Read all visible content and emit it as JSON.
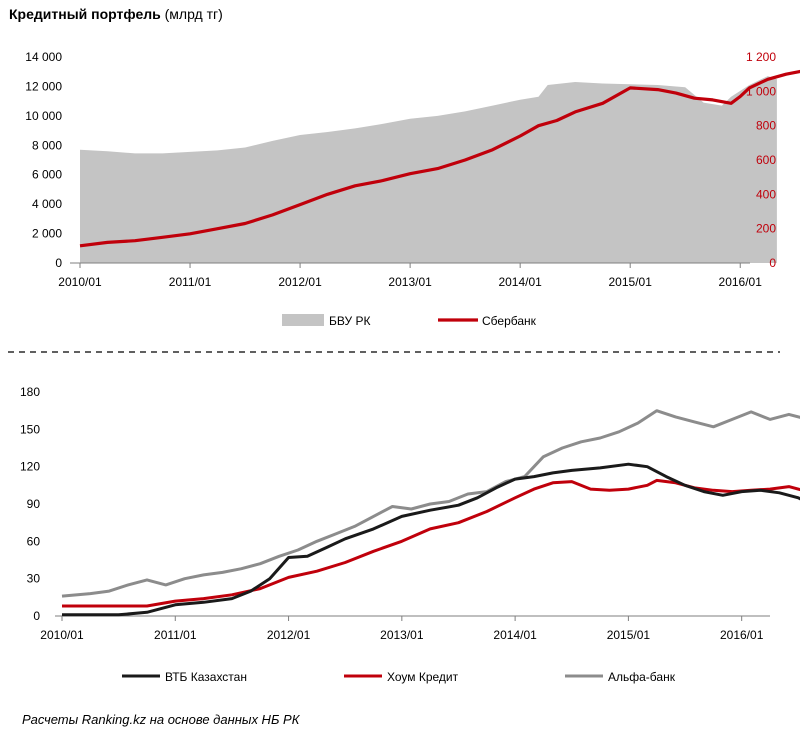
{
  "title": "Кредитный портфель",
  "title_unit": "(млрд тг)",
  "source": "Расчеты Ranking.kz на основе данных НБ РК",
  "colors": {
    "gray_area": "#c4c4c4",
    "red": "#c0000b",
    "black": "#1a1a1a",
    "gray_line": "#8c8c8c"
  },
  "chart_data": [
    {
      "type": "area",
      "x_ticks": [
        "2010/01",
        "2011/01",
        "2012/01",
        "2013/01",
        "2014/01",
        "2015/01",
        "2016/01"
      ],
      "y_left_ticks": [
        "0",
        "2 000",
        "4 000",
        "6 000",
        "8 000",
        "10 000",
        "12 000",
        "14 000"
      ],
      "y_right_ticks": [
        "0",
        "200",
        "400",
        "600",
        "800",
        "1 000",
        "1 200"
      ],
      "ylim_left": [
        0,
        14000
      ],
      "ylim_right": [
        0,
        1200
      ],
      "legend_position": "bottom",
      "series": [
        {
          "name": "БВУ РК",
          "type": "area",
          "axis": "left",
          "points": [
            [
              0,
              7700
            ],
            [
              3,
              7600
            ],
            [
              6,
              7450
            ],
            [
              9,
              7450
            ],
            [
              12,
              7550
            ],
            [
              15,
              7650
            ],
            [
              18,
              7850
            ],
            [
              21,
              8300
            ],
            [
              24,
              8700
            ],
            [
              27,
              8900
            ],
            [
              30,
              9150
            ],
            [
              33,
              9450
            ],
            [
              36,
              9800
            ],
            [
              39,
              10000
            ],
            [
              42,
              10300
            ],
            [
              45,
              10700
            ],
            [
              48,
              11100
            ],
            [
              50,
              11300
            ],
            [
              51,
              12100
            ],
            [
              54,
              12300
            ],
            [
              57,
              12200
            ],
            [
              60,
              12150
            ],
            [
              63,
              12100
            ],
            [
              66,
              11950
            ],
            [
              68,
              10900
            ],
            [
              70,
              10700
            ],
            [
              71,
              11300
            ],
            [
              73,
              12100
            ],
            [
              75,
              12700
            ],
            [
              76,
              12500
            ]
          ]
        },
        {
          "name": "Сбербанк",
          "type": "line",
          "axis": "right",
          "points": [
            [
              0,
              100
            ],
            [
              3,
              120
            ],
            [
              6,
              130
            ],
            [
              9,
              150
            ],
            [
              12,
              170
            ],
            [
              15,
              200
            ],
            [
              18,
              230
            ],
            [
              21,
              280
            ],
            [
              24,
              340
            ],
            [
              27,
              400
            ],
            [
              30,
              450
            ],
            [
              33,
              480
            ],
            [
              36,
              520
            ],
            [
              39,
              550
            ],
            [
              42,
              600
            ],
            [
              45,
              660
            ],
            [
              48,
              740
            ],
            [
              50,
              800
            ],
            [
              52,
              830
            ],
            [
              54,
              880
            ],
            [
              57,
              930
            ],
            [
              60,
              1020
            ],
            [
              63,
              1010
            ],
            [
              65,
              990
            ],
            [
              67,
              960
            ],
            [
              69,
              950
            ],
            [
              71,
              930
            ],
            [
              72,
              970
            ],
            [
              73,
              1020
            ],
            [
              75,
              1070
            ],
            [
              77,
              1100
            ],
            [
              79,
              1120
            ],
            [
              81,
              1100
            ]
          ]
        }
      ]
    },
    {
      "type": "line",
      "x_ticks": [
        "2010/01",
        "2011/01",
        "2012/01",
        "2013/01",
        "2014/01",
        "2015/01",
        "2016/01"
      ],
      "y_ticks": [
        "0",
        "30",
        "60",
        "90",
        "120",
        "150",
        "180"
      ],
      "ylim": [
        0,
        180
      ],
      "legend_position": "bottom",
      "series": [
        {
          "name": "ВТБ Казахстан",
          "points": [
            [
              0,
              1
            ],
            [
              3,
              1
            ],
            [
              6,
              1
            ],
            [
              9,
              3
            ],
            [
              12,
              9
            ],
            [
              15,
              11
            ],
            [
              18,
              14
            ],
            [
              20,
              20
            ],
            [
              22,
              30
            ],
            [
              24,
              47
            ],
            [
              26,
              48
            ],
            [
              28,
              55
            ],
            [
              30,
              62
            ],
            [
              33,
              70
            ],
            [
              36,
              80
            ],
            [
              39,
              85
            ],
            [
              42,
              89
            ],
            [
              44,
              95
            ],
            [
              46,
              103
            ],
            [
              48,
              110
            ],
            [
              50,
              112
            ],
            [
              52,
              115
            ],
            [
              54,
              117
            ],
            [
              57,
              119
            ],
            [
              60,
              122
            ],
            [
              62,
              120
            ],
            [
              64,
              112
            ],
            [
              66,
              105
            ],
            [
              68,
              100
            ],
            [
              70,
              97
            ],
            [
              72,
              100
            ],
            [
              74,
              101
            ],
            [
              76,
              99
            ],
            [
              78,
              95
            ],
            [
              79,
              91
            ]
          ]
        },
        {
          "name": "Хоум Кредит",
          "points": [
            [
              0,
              8
            ],
            [
              3,
              8
            ],
            [
              6,
              8
            ],
            [
              9,
              8
            ],
            [
              12,
              12
            ],
            [
              15,
              14
            ],
            [
              18,
              17
            ],
            [
              21,
              22
            ],
            [
              24,
              31
            ],
            [
              27,
              36
            ],
            [
              30,
              43
            ],
            [
              33,
              52
            ],
            [
              36,
              60
            ],
            [
              39,
              70
            ],
            [
              42,
              75
            ],
            [
              45,
              84
            ],
            [
              48,
              95
            ],
            [
              50,
              102
            ],
            [
              52,
              107
            ],
            [
              54,
              108
            ],
            [
              56,
              102
            ],
            [
              58,
              101
            ],
            [
              60,
              102
            ],
            [
              62,
              105
            ],
            [
              63,
              109
            ],
            [
              65,
              107
            ],
            [
              67,
              103
            ],
            [
              69,
              101
            ],
            [
              71,
              100
            ],
            [
              73,
              101
            ],
            [
              75,
              102
            ],
            [
              77,
              104
            ],
            [
              79,
              100
            ]
          ]
        },
        {
          "name": "Альфа-банк",
          "points": [
            [
              0,
              16
            ],
            [
              3,
              18
            ],
            [
              5,
              20
            ],
            [
              7,
              25
            ],
            [
              9,
              29
            ],
            [
              11,
              25
            ],
            [
              13,
              30
            ],
            [
              15,
              33
            ],
            [
              17,
              35
            ],
            [
              19,
              38
            ],
            [
              21,
              42
            ],
            [
              23,
              48
            ],
            [
              25,
              53
            ],
            [
              27,
              60
            ],
            [
              29,
              66
            ],
            [
              31,
              72
            ],
            [
              33,
              80
            ],
            [
              35,
              88
            ],
            [
              37,
              86
            ],
            [
              39,
              90
            ],
            [
              41,
              92
            ],
            [
              43,
              98
            ],
            [
              45,
              100
            ],
            [
              47,
              108
            ],
            [
              49,
              112
            ],
            [
              51,
              128
            ],
            [
              53,
              135
            ],
            [
              55,
              140
            ],
            [
              57,
              143
            ],
            [
              59,
              148
            ],
            [
              61,
              155
            ],
            [
              63,
              165
            ],
            [
              65,
              160
            ],
            [
              67,
              156
            ],
            [
              69,
              152
            ],
            [
              71,
              158
            ],
            [
              73,
              164
            ],
            [
              75,
              158
            ],
            [
              77,
              162
            ],
            [
              79,
              158
            ]
          ]
        }
      ]
    }
  ]
}
